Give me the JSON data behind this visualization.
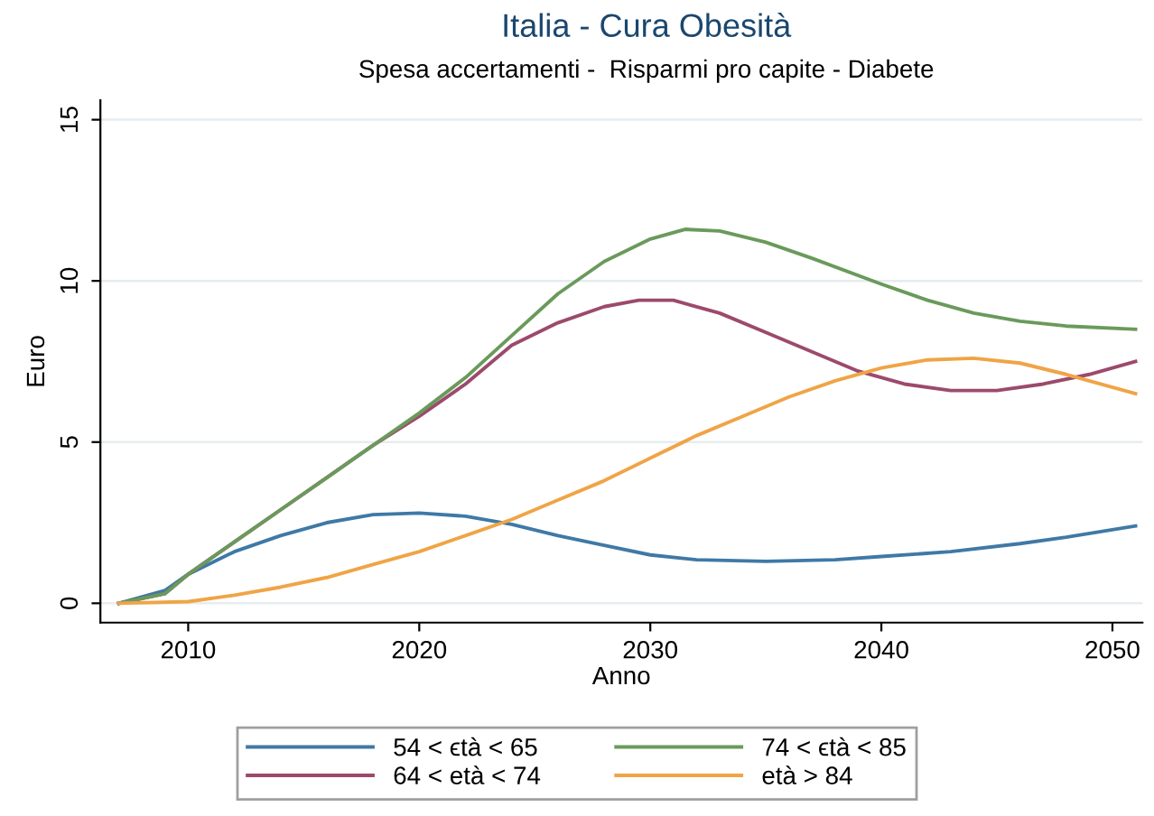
{
  "chart_data": {
    "type": "line",
    "title": "Italia - Cura Obesità",
    "subtitle": "Spesa accertamenti -  Risparmi pro capite - Diabete",
    "xlabel": "Anno",
    "ylabel": "Euro",
    "xlim": [
      2006.2,
      2051.3
    ],
    "xticks": [
      2010,
      2020,
      2030,
      2040,
      2050
    ],
    "ylim": [
      -0.6,
      15.6
    ],
    "yticks": [
      0,
      5,
      10,
      15
    ],
    "grid": "y",
    "legend": "bottom",
    "series": [
      {
        "name": "54 < ϵtà < 65",
        "color": "#3f79a6",
        "x": [
          2007,
          2009,
          2010,
          2012,
          2014,
          2016,
          2018,
          2020,
          2022,
          2024,
          2026,
          2028,
          2030,
          2032,
          2035,
          2038,
          2040,
          2043,
          2046,
          2048,
          2051
        ],
        "values": [
          0,
          0.4,
          0.9,
          1.6,
          2.1,
          2.5,
          2.75,
          2.8,
          2.7,
          2.45,
          2.1,
          1.8,
          1.5,
          1.35,
          1.3,
          1.35,
          1.45,
          1.6,
          1.85,
          2.05,
          2.4
        ]
      },
      {
        "name": "64 < età < 74",
        "color": "#9c4a6c",
        "x": [
          2007,
          2009,
          2010,
          2012,
          2014,
          2016,
          2018,
          2020,
          2022,
          2024,
          2026,
          2028,
          2029.5,
          2031,
          2033,
          2035,
          2037,
          2039,
          2041,
          2043,
          2045,
          2047,
          2049,
          2051
        ],
        "values": [
          0,
          0.3,
          0.9,
          1.9,
          2.9,
          3.9,
          4.9,
          5.8,
          6.8,
          8.0,
          8.7,
          9.2,
          9.4,
          9.4,
          9.0,
          8.4,
          7.8,
          7.2,
          6.8,
          6.6,
          6.6,
          6.8,
          7.1,
          7.5
        ]
      },
      {
        "name": "74 < ϵtà < 85",
        "color": "#6a9a5b",
        "x": [
          2007,
          2009,
          2010,
          2012,
          2014,
          2016,
          2018,
          2020,
          2022,
          2024,
          2026,
          2028,
          2030,
          2031.5,
          2033,
          2035,
          2037,
          2040,
          2042,
          2044,
          2046,
          2048,
          2051
        ],
        "values": [
          0,
          0.3,
          0.9,
          1.9,
          2.9,
          3.9,
          4.9,
          5.9,
          7.0,
          8.3,
          9.6,
          10.6,
          11.3,
          11.6,
          11.55,
          11.2,
          10.7,
          9.9,
          9.4,
          9.0,
          8.75,
          8.6,
          8.5
        ]
      },
      {
        "name": "età > 84",
        "color": "#f0a446",
        "x": [
          2007,
          2010,
          2012,
          2014,
          2016,
          2018,
          2020,
          2022,
          2024,
          2026,
          2028,
          2030,
          2032,
          2034,
          2036,
          2038,
          2040,
          2042,
          2044,
          2046,
          2048,
          2051
        ],
        "values": [
          0,
          0.05,
          0.25,
          0.5,
          0.8,
          1.2,
          1.6,
          2.1,
          2.6,
          3.2,
          3.8,
          4.5,
          5.2,
          5.8,
          6.4,
          6.9,
          7.3,
          7.55,
          7.6,
          7.45,
          7.1,
          6.5
        ]
      }
    ]
  }
}
